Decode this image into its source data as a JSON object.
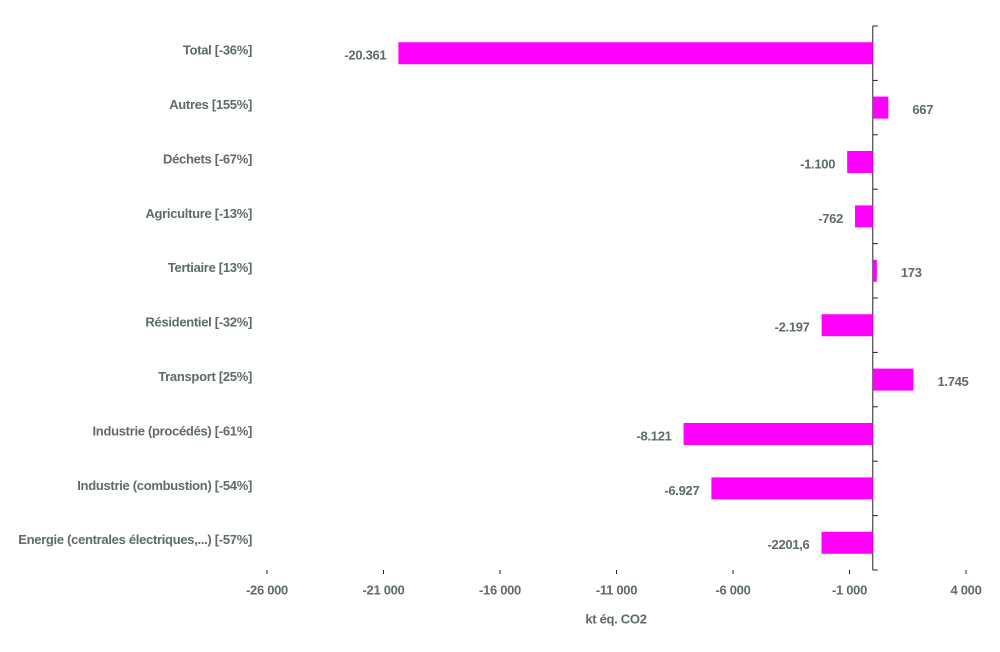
{
  "chart_data": {
    "type": "bar",
    "orientation": "horizontal",
    "categories": [
      "Total [-36%]",
      "Autres [155%]",
      "Déchets [-67%]",
      "Agriculture [-13%]",
      "Tertiaire  [13%]",
      "Résidentiel  [-32%]",
      "Transport [25%]",
      "Industrie (procédés) [-61%]",
      "Industrie (combustion) [-54%]",
      "Energie (centrales électriques,...) [-57%]"
    ],
    "values": [
      -20361,
      667,
      -1100,
      -762,
      173,
      -2197,
      1745,
      -8121,
      -6927,
      -2201.6
    ],
    "value_labels": [
      "-20.361",
      "667",
      "-1.100",
      "-762",
      "173",
      "-2.197",
      "1.745",
      "-8.121",
      "-6.927",
      "-2201,6"
    ],
    "color": "#ff00ff",
    "xlabel": "kt éq. CO2",
    "xlim": [
      -26000,
      4000
    ],
    "xticks": [
      {
        "value": -26000,
        "label": "-26 000"
      },
      {
        "value": -21000,
        "label": "-21 000"
      },
      {
        "value": -16000,
        "label": "-16 000"
      },
      {
        "value": -11000,
        "label": "-11 000"
      },
      {
        "value": -6000,
        "label": "-6 000"
      },
      {
        "value": -1000,
        "label": "-1 000"
      },
      {
        "value": 4000,
        "label": "4 000"
      }
    ]
  }
}
